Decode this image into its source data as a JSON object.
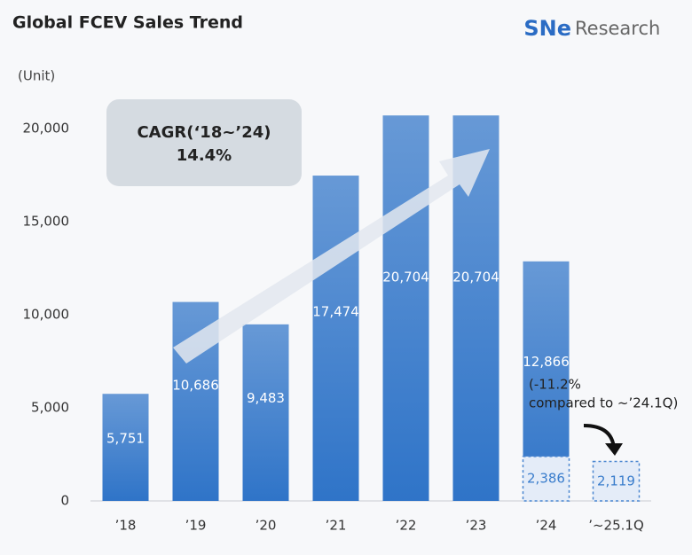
{
  "chart_data": {
    "type": "bar",
    "title": "Global FCEV Sales Trend",
    "logo": {
      "brand": "SNe",
      "name": "Research"
    },
    "y_axis_label": "(Unit)",
    "categories": [
      "’18",
      "’19",
      "’20",
      "’21",
      "’22",
      "’23",
      "’24",
      "’~25.1Q"
    ],
    "series": [
      {
        "color": "#2f74c8",
        "values": [
          5751,
          10686,
          9483,
          17474,
          20704,
          20704,
          12866,
          null
        ],
        "value_labels": [
          "5,751",
          "10,686",
          "9,483",
          "17,474",
          "20,704",
          "20,704",
          "12,866",
          null
        ]
      },
      {
        "color": "#4a86d0",
        "style": "dashed",
        "values": [
          null,
          null,
          null,
          null,
          null,
          null,
          2386,
          2119
        ],
        "value_labels": [
          null,
          null,
          null,
          null,
          null,
          null,
          "2,386",
          "2,119"
        ]
      }
    ],
    "ylim": [
      0,
      21000
    ],
    "yticks": [
      0,
      {
        "value": 5000,
        "label": "5,000"
      },
      {
        "value": 10000,
        "label": "10,000"
      },
      {
        "value": 15000,
        "label": "15,000"
      },
      {
        "value": 20000,
        "label": "20,000"
      }
    ],
    "grid": false,
    "annotations": {
      "cagr_label": "CAGR(‘18~’24)",
      "cagr_value": "14.4%",
      "change_line1": "(-11.2%",
      "change_line2": "compared to ~’24.1Q)"
    }
  }
}
